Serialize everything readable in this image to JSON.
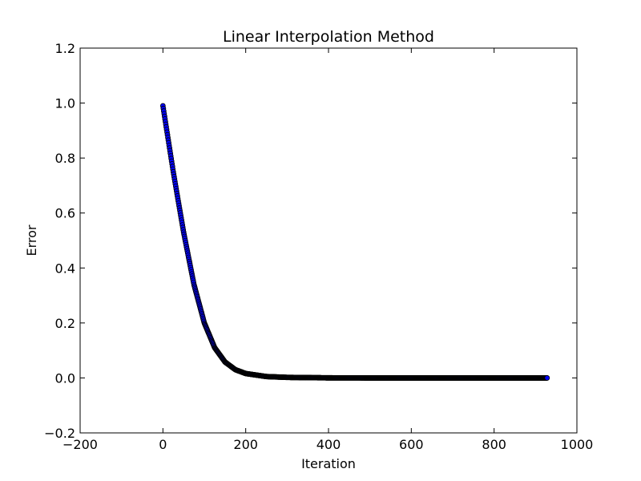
{
  "chart_data": {
    "type": "scatter",
    "title": "Linear Interpolation Method",
    "xlabel": "Iteration",
    "ylabel": "Error",
    "xlim": [
      -200,
      1000
    ],
    "ylim": [
      -0.2,
      1.2
    ],
    "xticks": [
      -200,
      0,
      200,
      400,
      600,
      800,
      1000
    ],
    "yticks": [
      -0.2,
      0.0,
      0.2,
      0.4,
      0.6,
      0.8,
      1.0,
      1.2
    ],
    "xtick_labels": [
      "−200",
      "0",
      "200",
      "400",
      "600",
      "800",
      "1000"
    ],
    "ytick_labels": [
      "−0.2",
      "0.0",
      "0.2",
      "0.4",
      "0.6",
      "0.8",
      "1.0",
      "1.2"
    ],
    "grid": false,
    "marker_color": "#0000ff",
    "marker_edge": "#000000",
    "series": [
      {
        "x": [
          0,
          25,
          50,
          75,
          100,
          125,
          150,
          175,
          200,
          250,
          300,
          400,
          500,
          600,
          700,
          800,
          928
        ],
        "y": [
          0.99,
          0.75,
          0.53,
          0.34,
          0.2,
          0.11,
          0.058,
          0.03,
          0.016,
          0.005,
          0.002,
          0.0003,
          0.0,
          0.0,
          0.0,
          0.0,
          0.0
        ]
      }
    ]
  }
}
